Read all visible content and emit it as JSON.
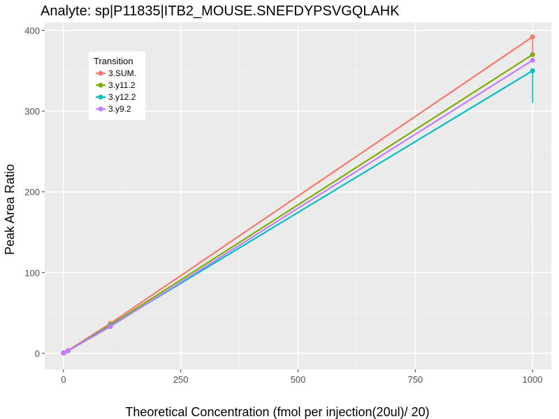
{
  "chart_data": {
    "type": "line",
    "title": "Analyte: sp|P11835|ITB2_MOUSE.SNEFDYPSVGQLAHK",
    "xlabel": "Theoretical Concentration (fmol per injection(20ul)/ 20)",
    "ylabel": "Peak Area Ratio",
    "xlim": [
      -40,
      1040
    ],
    "ylim": [
      -20,
      410
    ],
    "x_ticks": [
      0,
      250,
      500,
      750,
      1000
    ],
    "y_ticks": [
      0,
      100,
      200,
      300,
      400
    ],
    "x_tick_labels": [
      "0",
      "250",
      "500",
      "750",
      "1000"
    ],
    "y_tick_labels": [
      "0",
      "100",
      "200",
      "300",
      "400"
    ],
    "grid": true,
    "legend": {
      "title": "Transition",
      "position": "top-left"
    },
    "series": [
      {
        "name": "3.SUM.",
        "color": "#F8766D",
        "points": [
          [
            0,
            0.4
          ],
          [
            1,
            0.8
          ],
          [
            10,
            3.5
          ],
          [
            100,
            37
          ],
          [
            1000,
            392
          ]
        ],
        "error_bars": []
      },
      {
        "name": "3.y11.2",
        "color": "#7CAE00",
        "points": [
          [
            0,
            0.3
          ],
          [
            1,
            0.7
          ],
          [
            10,
            3.2
          ],
          [
            100,
            35
          ],
          [
            1000,
            370
          ]
        ],
        "error_bars": []
      },
      {
        "name": "3.y12.2",
        "color": "#00BFC4",
        "points": [
          [
            0,
            0.3
          ],
          [
            1,
            0.6
          ],
          [
            10,
            3.0
          ],
          [
            100,
            34
          ],
          [
            1000,
            350
          ]
        ],
        "error_bars": [
          {
            "x": 1000,
            "low": 310,
            "high": 350
          }
        ]
      },
      {
        "name": "3.y9.2",
        "color": "#C77CFF",
        "points": [
          [
            0,
            0.3
          ],
          [
            1,
            0.6
          ],
          [
            10,
            3.1
          ],
          [
            100,
            33
          ],
          [
            1000,
            363
          ]
        ],
        "error_bars": []
      }
    ],
    "sum_error_bar": {
      "x": 1000,
      "low": 370,
      "high": 392
    }
  }
}
